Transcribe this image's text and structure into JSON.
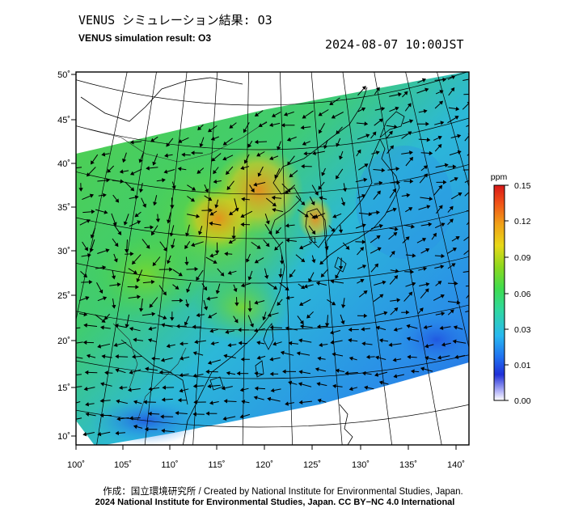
{
  "title_jp": "VENUS シミュレーション結果: O3",
  "title_en": "VENUS simulation result: O3",
  "datetime": "2024-08-07 10:00JST",
  "map": {
    "lon_range": [
      100,
      142
    ],
    "lat_range": [
      9,
      50
    ],
    "lon_ticks": [
      "100˚",
      "105˚",
      "110˚",
      "115˚",
      "120˚",
      "125˚",
      "130˚",
      "135˚",
      "140˚"
    ],
    "lat_ticks": [
      "50˚",
      "45˚",
      "40˚",
      "35˚",
      "30˚",
      "25˚",
      "20˚",
      "15˚",
      "10˚"
    ],
    "field": "O3 concentration with wind vectors",
    "region_marker": "31"
  },
  "colorbar": {
    "unit": "ppm",
    "labels": [
      "0.15",
      "0.12",
      "0.09",
      "0.06",
      "0.03",
      "0.01",
      "0.00"
    ],
    "colors": [
      "#ffffff",
      "#1a2fd8",
      "#2aa8f0",
      "#3fdc4e",
      "#8cd81e",
      "#f0c818",
      "#f04818",
      "#d81818"
    ]
  },
  "credit_line1": "作成：国立環境研究所 / Created by National Institute for Environmental Studies, Japan.",
  "credit_line2": "2024 National Institute for Environmental Studies, Japan. CC BY−NC 4.0 International"
}
